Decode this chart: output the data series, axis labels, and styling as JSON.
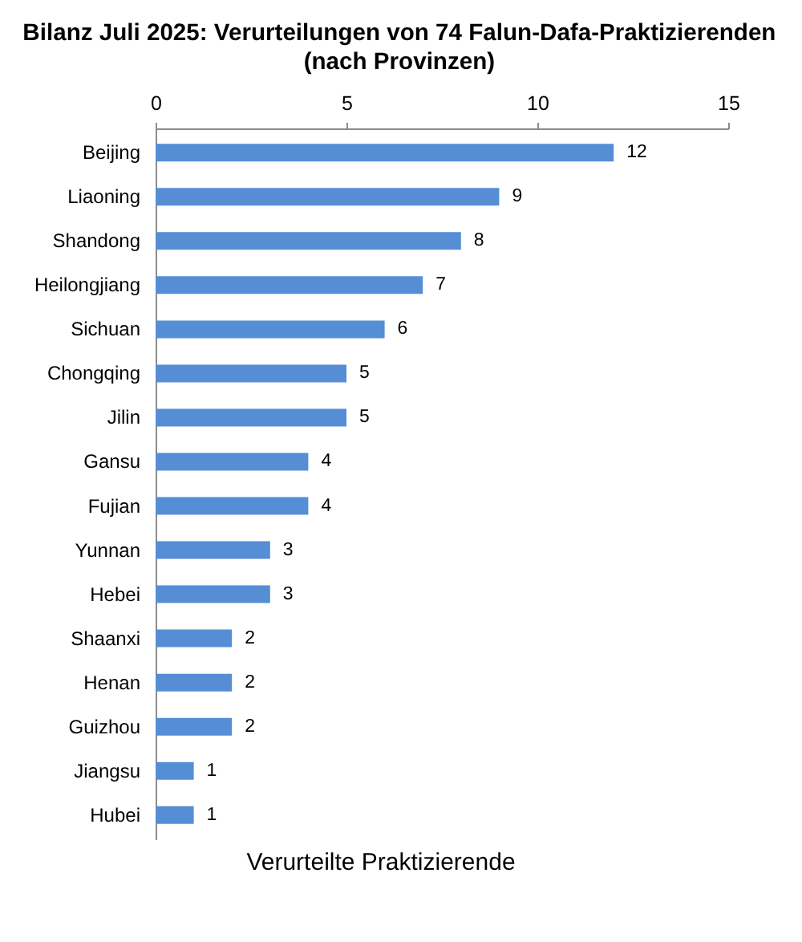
{
  "chart_data": {
    "type": "bar",
    "orientation": "horizontal",
    "title": "Bilanz Juli 2025: Verurteilungen von 74 Falun-Dafa-Praktizierenden\n(nach Provinzen)",
    "xlabel": "Verurteilte Praktizierende",
    "categories": [
      "Beijing",
      "Liaoning",
      "Shandong",
      "Heilongjiang",
      "Sichuan",
      "Chongqing",
      "Jilin",
      "Gansu",
      "Fujian",
      "Yunnan",
      "Hebei",
      "Shaanxi",
      "Henan",
      "Guizhou",
      "Jiangsu",
      "Hubei"
    ],
    "values": [
      12,
      9,
      8,
      7,
      6,
      5,
      5,
      4,
      4,
      3,
      3,
      2,
      2,
      2,
      1,
      1
    ],
    "color": "#558ed5",
    "xlim": [
      0,
      15
    ],
    "xticks": [
      0,
      5,
      10,
      15
    ],
    "grid": false,
    "data_labels": true
  }
}
